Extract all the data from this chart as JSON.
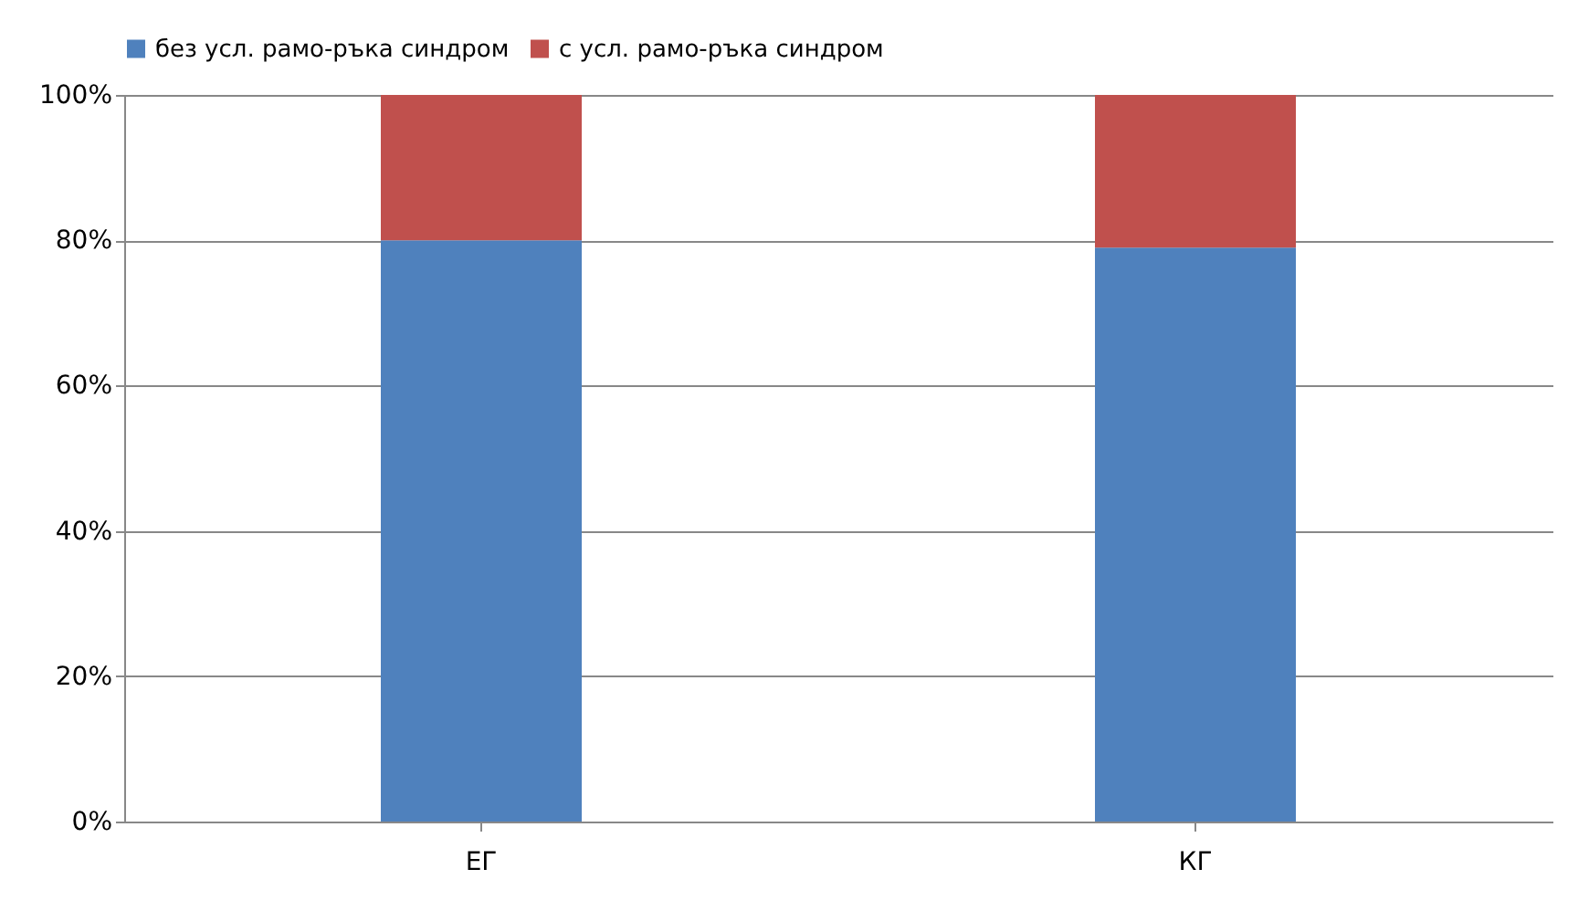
{
  "chart_data": {
    "type": "bar",
    "stacked": true,
    "categories": [
      "ЕГ",
      "КГ"
    ],
    "series": [
      {
        "name": "без усл. рамо-ръка синдром",
        "color": "#4f81bd",
        "values": [
          80,
          79
        ]
      },
      {
        "name": "с усл. рамо-ръка синдром",
        "color": "#c0504d",
        "values": [
          20,
          21
        ]
      }
    ],
    "ylim": [
      0,
      100
    ],
    "yticks": [
      {
        "value": 0,
        "label": "0%"
      },
      {
        "value": 20,
        "label": "20%"
      },
      {
        "value": 40,
        "label": "40%"
      },
      {
        "value": 60,
        "label": "60%"
      },
      {
        "value": 80,
        "label": "80%"
      },
      {
        "value": 100,
        "label": "100%"
      }
    ],
    "grid": "y",
    "legend": "top"
  }
}
